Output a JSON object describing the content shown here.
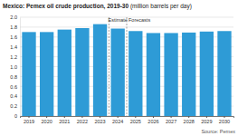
{
  "chart_data": {
    "type": "bar",
    "title": "Mexico: Pemex oil crude production, 2019-30",
    "subtitle": "(million barrels per day)",
    "source": "Source: Pemex",
    "categories": [
      "2019",
      "2020",
      "2021",
      "2022",
      "2023",
      "2024",
      "2025",
      "2026",
      "2027",
      "2028",
      "2029",
      "2030"
    ],
    "values": [
      1.7,
      1.7,
      1.75,
      1.78,
      1.86,
      1.77,
      1.72,
      1.68,
      1.68,
      1.69,
      1.71,
      1.72
    ],
    "color": "#2e9bd6",
    "ylim": [
      0,
      2
    ],
    "yticks": [
      0,
      0.2,
      0.4,
      0.6,
      0.8,
      {
        "value": 1,
        "label": "1.0"
      },
      1.2,
      1.4,
      1.6,
      1.8,
      {
        "value": 2,
        "label": "2.0"
      }
    ],
    "grid": true,
    "annotations": [
      {
        "text": "Estimate",
        "x": "2024"
      },
      {
        "text": "Forecasts",
        "x": "2025"
      }
    ]
  }
}
